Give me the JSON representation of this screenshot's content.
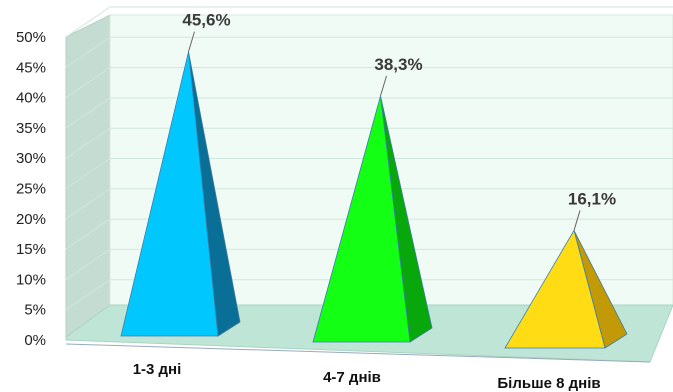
{
  "chart_data": {
    "type": "bar",
    "categories": [
      "1-3 дні",
      "4-7 днів",
      "Більше 8 днів"
    ],
    "values": [
      45.6,
      38.3,
      16.1
    ],
    "data_labels": [
      "45,6%",
      "38,3%",
      "16,1%"
    ],
    "y_ticks": [
      "0%",
      "5%",
      "10%",
      "15%",
      "20%",
      "25%",
      "30%",
      "35%",
      "40%",
      "45%",
      "50%"
    ],
    "ylim": [
      0,
      50
    ],
    "grid": true,
    "style": "3d-pyramid",
    "colors": {
      "series": [
        "#00c8ff",
        "#13ff13",
        "#ffdc14"
      ],
      "series_dark": [
        "#0a6f96",
        "#08a80c",
        "#c29a08"
      ],
      "wall": "#f1fbf5",
      "side_wall": "#c5dcd3",
      "floor": "#bfe5d6",
      "gridline": "#cfe7dc"
    }
  }
}
